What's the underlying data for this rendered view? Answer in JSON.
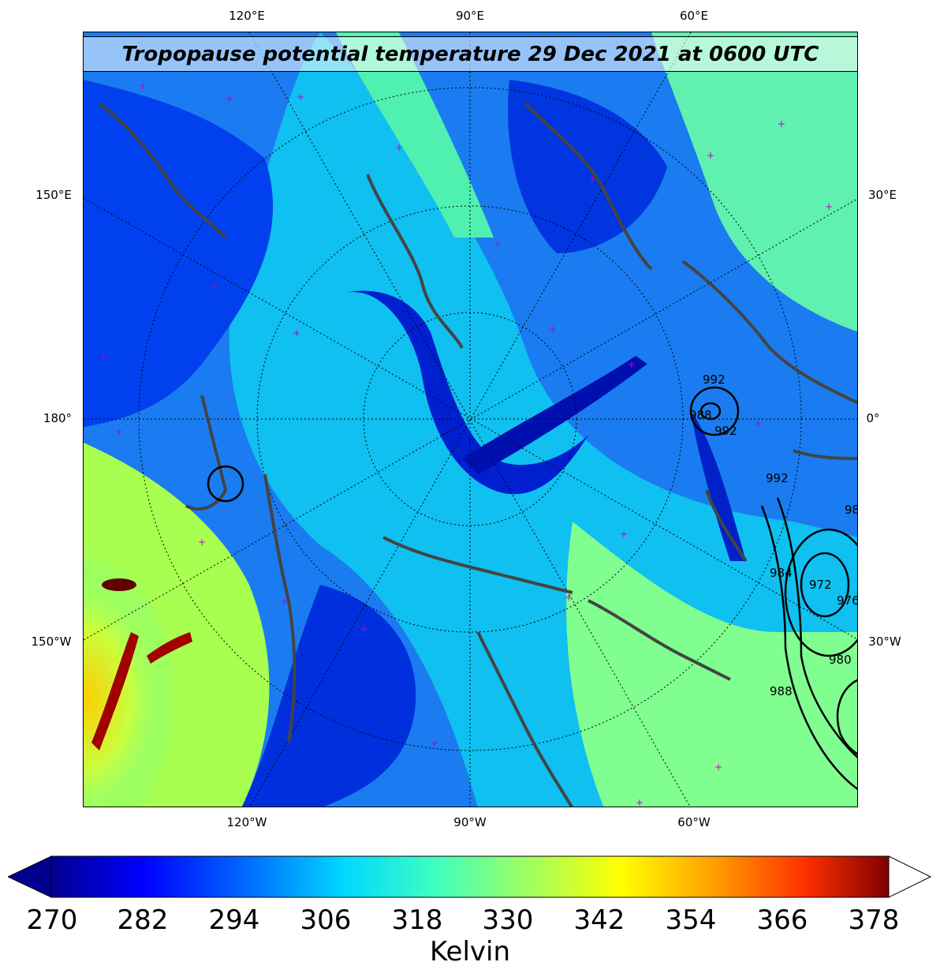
{
  "title": "Tropopause potential temperature 29 Dec 2021 at 0600 UTC",
  "labels": {
    "top_120e": "120°E",
    "top_90e": "90°E",
    "top_60e": "60°E",
    "left_150e": "150°E",
    "left_180": "180°",
    "left_150w": "150°W",
    "right_30e": "30°E",
    "right_0": "0°",
    "right_30w": "30°W",
    "bottom_120w": "120°W",
    "bottom_90w": "90°W",
    "bottom_60w": "60°W"
  },
  "pressure_contours": [
    "992",
    "988",
    "992",
    "984",
    "976",
    "972",
    "980",
    "988",
    "992",
    "98"
  ],
  "colorbar": {
    "label": "Kelvin",
    "ticks": [
      "270",
      "282",
      "294",
      "306",
      "318",
      "330",
      "342",
      "354",
      "366",
      "378"
    ],
    "colors": [
      "#00008f",
      "#0000ff",
      "#0070ff",
      "#00d8ff",
      "#40ffbf",
      "#a0ff60",
      "#ffff00",
      "#ffa000",
      "#ff3000",
      "#800000"
    ]
  }
}
